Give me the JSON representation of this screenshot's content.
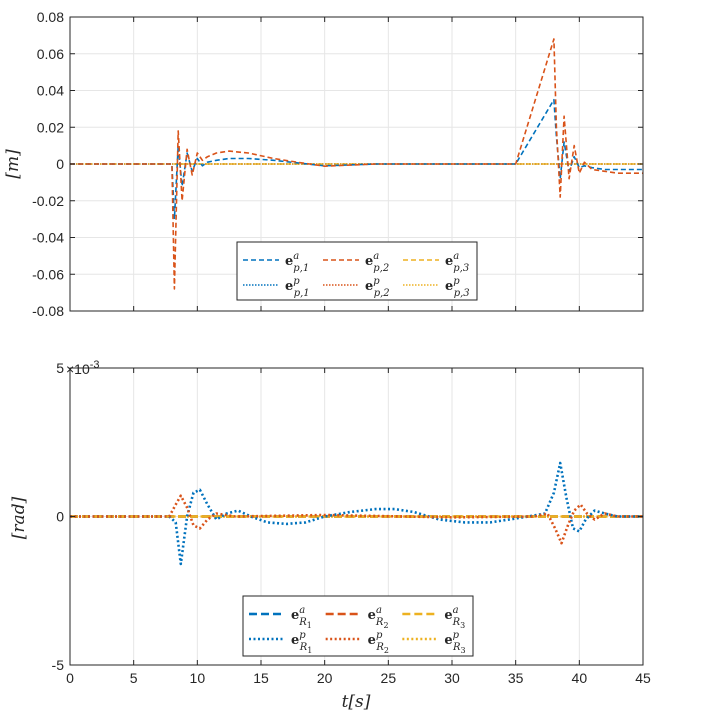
{
  "chart_data": [
    {
      "type": "line",
      "ylabel": "[m]",
      "xlabel": "",
      "xlim": [
        0,
        45
      ],
      "ylim": [
        -0.08,
        0.08
      ],
      "xticks": [
        "0",
        "5",
        "10",
        "15",
        "20",
        "25",
        "30",
        "35",
        "40",
        "45"
      ],
      "yticks": [
        "-0.08",
        "-0.06",
        "-0.04",
        "-0.02",
        "0",
        "0.02",
        "0.04",
        "0.06",
        "0.08"
      ],
      "grid": true,
      "legend_position": "lower-center",
      "series": [
        {
          "name": "e^a_{p,1}",
          "sym": "e",
          "sup": "a",
          "sub": "p,1",
          "color": "#0072BD",
          "style": "dash",
          "x": [
            0,
            8.0,
            8.2,
            8.5,
            8.8,
            9.2,
            9.6,
            10.0,
            10.4,
            10.8,
            11.5,
            12.5,
            14,
            16,
            18,
            20,
            22,
            24,
            30,
            35,
            38.0,
            38.2,
            38.5,
            38.8,
            39.2,
            39.6,
            40.0,
            40.4,
            41,
            42,
            43,
            45
          ],
          "y": [
            0,
            0,
            -0.03,
            0.01,
            -0.012,
            0.006,
            -0.004,
            0.003,
            -0.001,
            0.001,
            0.002,
            0.003,
            0.003,
            0.002,
            0.0005,
            -0.001,
            -0.0005,
            0,
            0,
            0,
            0.035,
            0.015,
            -0.008,
            0.012,
            -0.004,
            0.004,
            -0.002,
            -0.001,
            -0.002,
            -0.003,
            -0.003,
            -0.003
          ]
        },
        {
          "name": "e^a_{p,2}",
          "sym": "e",
          "sup": "a",
          "sub": "p,2",
          "color": "#D95319",
          "style": "dash",
          "x": [
            0,
            8.0,
            8.2,
            8.5,
            8.8,
            9.2,
            9.6,
            10.0,
            10.4,
            10.8,
            11.5,
            12.5,
            14,
            16,
            18,
            20,
            22,
            24,
            30,
            35,
            38.0,
            38.2,
            38.5,
            38.8,
            39.2,
            39.6,
            40.0,
            40.4,
            41,
            42,
            43,
            45
          ],
          "y": [
            0,
            0,
            -0.068,
            0.018,
            -0.02,
            0.008,
            -0.006,
            0.006,
            0.002,
            0.004,
            0.006,
            0.007,
            0.006,
            0.003,
            0.0008,
            -0.0012,
            -0.0006,
            0,
            0,
            0,
            0.068,
            0.02,
            -0.018,
            0.026,
            -0.008,
            0.01,
            -0.005,
            0.001,
            -0.003,
            -0.004,
            -0.005,
            -0.005
          ]
        },
        {
          "name": "e^a_{p,3}",
          "sym": "e",
          "sup": "a",
          "sub": "p,3",
          "color": "#EDB120",
          "style": "dash",
          "x": [
            0,
            45
          ],
          "y": [
            0,
            0
          ]
        },
        {
          "name": "e^p_{p,1}",
          "sym": "e",
          "sup": "p",
          "sub": "p,1",
          "color": "#0072BD",
          "style": "dot",
          "x": [
            0,
            45
          ],
          "y": [
            0,
            0
          ]
        },
        {
          "name": "e^p_{p,2}",
          "sym": "e",
          "sup": "p",
          "sub": "p,2",
          "color": "#D95319",
          "style": "dot",
          "x": [
            0,
            45
          ],
          "y": [
            0,
            0
          ]
        },
        {
          "name": "e^p_{p,3}",
          "sym": "e",
          "sup": "p",
          "sub": "p,3",
          "color": "#EDB120",
          "style": "dot",
          "x": [
            0,
            45
          ],
          "y": [
            0,
            0
          ]
        }
      ]
    },
    {
      "type": "line",
      "ylabel": "[rad]",
      "xlabel": "t[s]",
      "xlim": [
        0,
        45
      ],
      "ylim": [
        -0.005,
        0.005
      ],
      "y_multiplier": "×10",
      "y_multiplier_exp": "-3",
      "xticks": [
        "0",
        "5",
        "10",
        "15",
        "20",
        "25",
        "30",
        "35",
        "40",
        "45"
      ],
      "yticks": [
        "-5",
        "0",
        "5"
      ],
      "grid": true,
      "legend_position": "lower-center",
      "series": [
        {
          "name": "e^a_{R_1}",
          "sym": "e",
          "sup": "a",
          "sub": "R",
          "subsub": "1",
          "color": "#0072BD",
          "style": "dash",
          "x": [
            0,
            45
          ],
          "y": [
            0,
            0
          ]
        },
        {
          "name": "e^a_{R_2}",
          "sym": "e",
          "sup": "a",
          "sub": "R",
          "subsub": "2",
          "color": "#D95319",
          "style": "dash",
          "x": [
            0,
            45
          ],
          "y": [
            0,
            0
          ]
        },
        {
          "name": "e^a_{R_3}",
          "sym": "e",
          "sup": "a",
          "sub": "R",
          "subsub": "3",
          "color": "#EDB120",
          "style": "dash",
          "x": [
            0,
            45
          ],
          "y": [
            0,
            0
          ]
        },
        {
          "name": "e^p_{R_1}",
          "sym": "e",
          "sup": "p",
          "sub": "R",
          "subsub": "1",
          "color": "#0072BD",
          "style": "dot",
          "x": [
            0,
            7.8,
            8.3,
            8.7,
            9.2,
            9.7,
            10.2,
            10.8,
            11.5,
            12.3,
            13.2,
            14.2,
            15.5,
            17,
            18.5,
            20,
            22,
            24,
            25.5,
            27,
            29,
            31,
            33,
            34.5,
            36,
            37.3,
            38.0,
            38.5,
            39.0,
            39.5,
            40.0,
            40.5,
            41.2,
            42,
            43,
            45
          ],
          "y": [
            0,
            0,
            -0.0002,
            -0.0016,
            0.0,
            0.0008,
            0.0009,
            0.0004,
            -0.0001,
            0.0001,
            0.0002,
            0.0,
            -0.0002,
            -0.00025,
            -0.0002,
            0.0,
            0.00015,
            0.00025,
            0.00025,
            0.00015,
            -0.0001,
            -0.0002,
            -0.0002,
            -0.0001,
            0.0,
            0.0001,
            0.0008,
            0.0018,
            0.0006,
            -0.0004,
            -0.0005,
            -0.0001,
            0.0002,
            0.0001,
            0.0,
            0.0
          ]
        },
        {
          "name": "e^p_{R_2}",
          "sym": "e",
          "sup": "p",
          "sub": "R",
          "subsub": "2",
          "color": "#D95319",
          "style": "dot",
          "x": [
            0,
            7.8,
            8.3,
            8.7,
            9.2,
            9.7,
            10.2,
            10.8,
            11.5,
            13,
            20,
            30,
            36.5,
            37.5,
            38.1,
            38.6,
            39.1,
            39.6,
            40.1,
            40.6,
            41.2,
            42,
            43,
            45
          ],
          "y": [
            0,
            0,
            0.0004,
            0.0007,
            0.0003,
            -0.0003,
            -0.0004,
            -0.0001,
            0.0001,
            0.0,
            5e-05,
            -3e-05,
            0.0,
            0.0001,
            -0.0004,
            -0.0009,
            -0.0003,
            0.0002,
            0.0004,
            0.0001,
            -0.0001,
            0.0001,
            0.0,
            0.0
          ]
        },
        {
          "name": "e^p_{R_3}",
          "sym": "e",
          "sup": "p",
          "sub": "R",
          "subsub": "3",
          "color": "#EDB120",
          "style": "dot",
          "x": [
            0,
            45
          ],
          "y": [
            0,
            0
          ]
        }
      ]
    }
  ]
}
